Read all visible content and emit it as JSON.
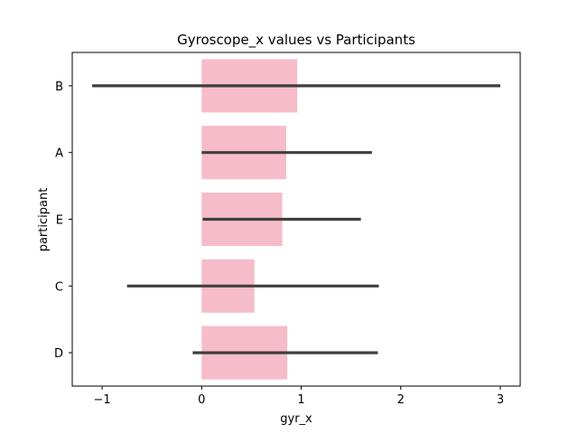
{
  "chart_data": {
    "type": "bar",
    "orientation": "horizontal",
    "title": "Gyroscope_x values vs Participants",
    "xlabel": "gyr_x",
    "ylabel": "participant",
    "xlim": [
      -1.3,
      3.2
    ],
    "xticks": [
      -1,
      0,
      1,
      2,
      3
    ],
    "xtick_labels": [
      "−1",
      "0",
      "1",
      "2",
      "3"
    ],
    "categories": [
      "B",
      "A",
      "E",
      "C",
      "D"
    ],
    "values": [
      0.96,
      0.85,
      0.81,
      0.53,
      0.86
    ],
    "error_low": [
      -1.1,
      0.0,
      0.01,
      -0.75,
      -0.09
    ],
    "error_high": [
      3.0,
      1.71,
      1.6,
      1.78,
      1.77
    ],
    "bar_color": "#f7bcc9",
    "error_color": "#3f3f3f",
    "grid": false
  }
}
